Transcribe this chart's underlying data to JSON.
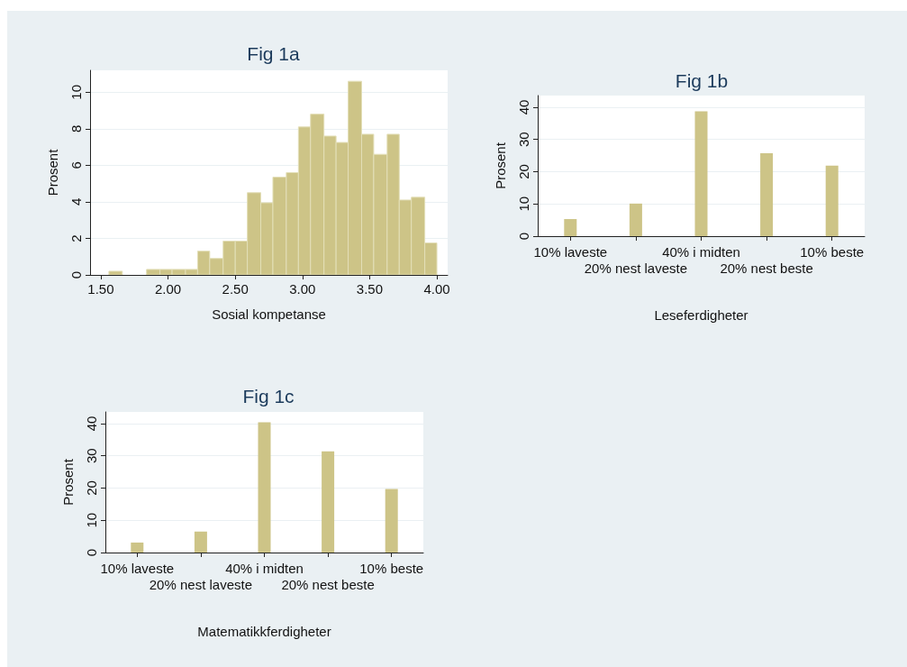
{
  "chart_data": [
    {
      "type": "histogram",
      "title": "Fig 1a",
      "xlabel": "Sosial kompetanse",
      "ylabel": "Prosent",
      "color": "#cdc487",
      "bins": [
        1.56,
        1.66,
        1.84,
        1.94,
        2.03,
        2.13,
        2.22,
        2.31,
        2.41,
        2.5,
        2.59,
        2.69,
        2.78,
        2.88,
        2.97,
        3.06,
        3.16,
        3.25,
        3.34,
        3.44,
        3.53,
        3.63,
        3.72,
        3.81,
        3.91,
        4.0
      ],
      "values": [
        0.2,
        0,
        0.3,
        0.3,
        0.3,
        0.3,
        1.3,
        0.9,
        1.85,
        1.85,
        4.5,
        3.95,
        5.35,
        5.6,
        8.1,
        8.8,
        7.6,
        7.25,
        10.6,
        7.7,
        6.6,
        7.7,
        4.1,
        4.25,
        1.75
      ],
      "xlim": [
        1.42,
        4.08
      ],
      "xticks": [
        {
          "value": 1.5,
          "label": "1.50"
        },
        {
          "value": 2,
          "label": "2.00"
        },
        {
          "value": 2.5,
          "label": "2.50"
        },
        {
          "value": 3,
          "label": "3.00"
        },
        {
          "value": 3.5,
          "label": "3.50"
        },
        {
          "value": 4,
          "label": "4.00"
        }
      ],
      "ylim": [
        0,
        11.2
      ],
      "yticks": [
        0,
        2,
        4,
        6,
        8,
        10
      ],
      "grid": "y"
    },
    {
      "type": "bar",
      "title": "Fig 1b",
      "xlabel": "Leseferdigheter",
      "ylabel": "Prosent",
      "color": "#cdc487",
      "categories": [
        "10% laveste",
        "20% nest laveste",
        "40% i midten",
        "20% nest beste",
        "10% beste"
      ],
      "values": [
        5.3,
        10.1,
        38.7,
        25.7,
        21.9
      ],
      "ylim": [
        0,
        43.6
      ],
      "yticks": [
        0,
        10,
        20,
        30,
        40
      ],
      "grid": "y"
    },
    {
      "type": "bar",
      "title": "Fig 1c",
      "xlabel": "Matematikkferdigheter",
      "ylabel": "Prosent",
      "color": "#cdc487",
      "categories": [
        "10% laveste",
        "20% nest laveste",
        "40% i midten",
        "20% nest beste",
        "10% beste"
      ],
      "values": [
        3.1,
        6.5,
        40.4,
        31.4,
        19.7
      ],
      "ylim": [
        0,
        43.6
      ],
      "yticks": [
        0,
        10,
        20,
        30,
        40
      ],
      "grid": "y"
    }
  ]
}
